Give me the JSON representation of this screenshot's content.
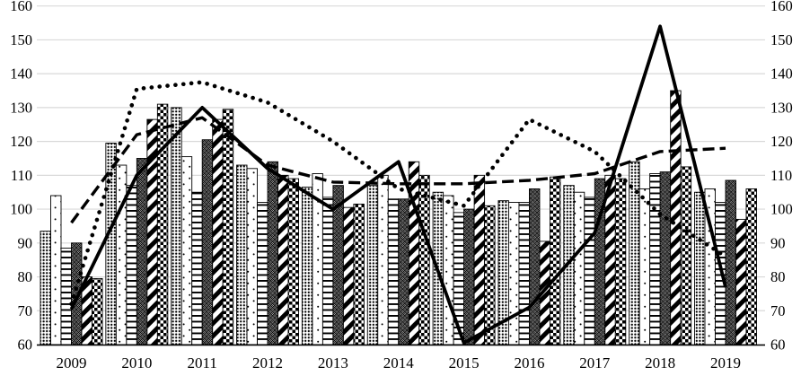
{
  "chart_data": {
    "type": "combo-bar-line",
    "title": "",
    "xlabel": "",
    "ylabel": "",
    "categories": [
      "2009",
      "2010",
      "2011",
      "2012",
      "2013",
      "2014",
      "2015",
      "2016",
      "2017",
      "2018",
      "2019"
    ],
    "bar_series": [
      {
        "name": "dense-dots-bar",
        "pattern": "dense-dots",
        "values": [
          93.5,
          119.5,
          130,
          113,
          106.5,
          107,
          105,
          102.5,
          107,
          114,
          105
        ]
      },
      {
        "name": "sparse-dots-bar",
        "pattern": "sparse-dots",
        "values": [
          104,
          113,
          115.5,
          112,
          110.5,
          110,
          104,
          102,
          105,
          106,
          106
        ]
      },
      {
        "name": "horizontal-lines-bar",
        "pattern": "horiz-lines",
        "values": [
          88.5,
          107,
          105,
          102,
          103.5,
          103,
          99,
          102,
          103.5,
          110.5,
          102
        ]
      },
      {
        "name": "diamond-hatch-bar",
        "pattern": "diamond-hatch",
        "values": [
          90,
          115,
          120.5,
          114,
          107,
          103,
          100,
          106,
          109,
          111,
          108.5
        ]
      },
      {
        "name": "diagonal-stripes-bar",
        "pattern": "diag-stripes",
        "values": [
          80,
          126.5,
          126.5,
          110,
          100.5,
          114,
          110,
          90.5,
          110,
          135,
          97
        ]
      },
      {
        "name": "checkerboard-bar",
        "pattern": "checkerboard",
        "values": [
          79.5,
          131,
          129.5,
          109,
          101.5,
          110,
          101,
          109.5,
          109,
          112.5,
          106
        ]
      }
    ],
    "line_series": [
      {
        "name": "solid-line",
        "style": "solid",
        "values": [
          70.5,
          110,
          130,
          112,
          100,
          114,
          60.5,
          71,
          93,
          154,
          77
        ]
      },
      {
        "name": "dashed-line",
        "style": "dashed",
        "values": [
          96,
          122,
          127,
          113,
          108,
          107.5,
          107.5,
          108.5,
          110.5,
          117,
          118
        ]
      },
      {
        "name": "dotted-line",
        "style": "dotted",
        "values": [
          72,
          135.5,
          137.5,
          131.5,
          120,
          106,
          101,
          126.5,
          117,
          98.5,
          86
        ]
      }
    ],
    "y_axis_left": {
      "min": 60,
      "max": 160,
      "step": 10,
      "ticks": [
        "160",
        "150",
        "140",
        "130",
        "120",
        "110",
        "100",
        "90",
        "80",
        "70",
        "60"
      ]
    },
    "y_axis_right": {
      "min": 60,
      "max": 160,
      "step": 10,
      "ticks": [
        "160",
        "150",
        "140",
        "130",
        "120",
        "110",
        "100",
        "90",
        "80",
        "70",
        "60"
      ]
    },
    "grid": true,
    "legend": false,
    "colors": {
      "foreground": "#000000",
      "gridline": "#d9d9d9",
      "background": "#ffffff",
      "axis_line": "#000000"
    }
  }
}
